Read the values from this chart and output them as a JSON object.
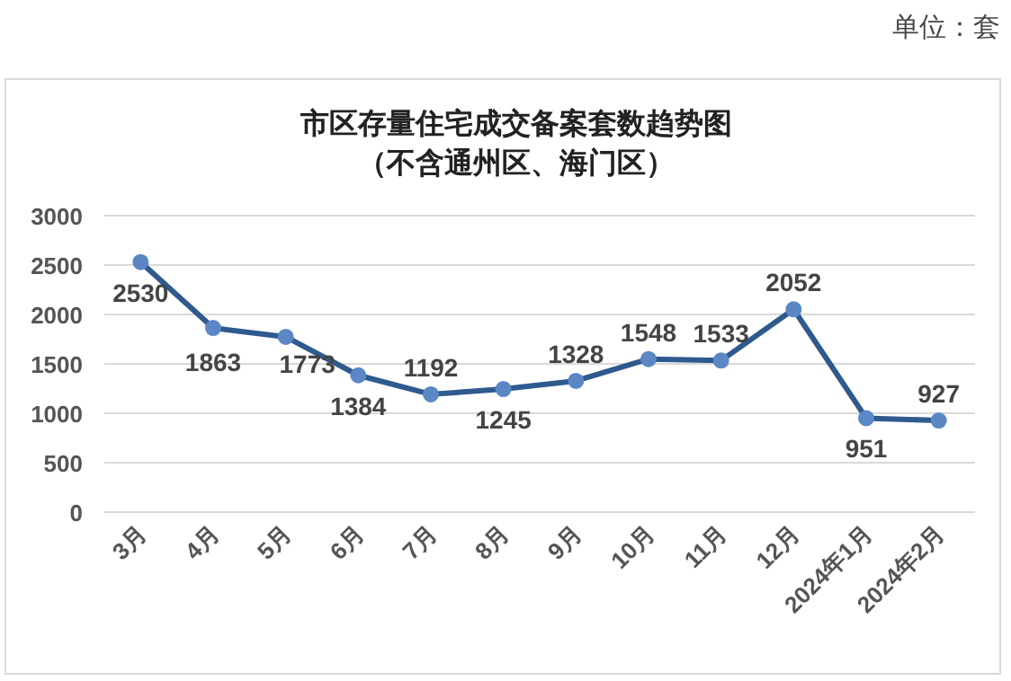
{
  "chart_data": {
    "type": "line",
    "title": "市区存量住宅成交备案套数趋势图",
    "subtitle": "（不含通州区、海门区）",
    "annotations": [
      "单位：套"
    ],
    "categories": [
      "3月",
      "4月",
      "5月",
      "6月",
      "7月",
      "8月",
      "9月",
      "10月",
      "11月",
      "12月",
      "2024年1月",
      "2024年2月"
    ],
    "series": [
      {
        "color": "#2e5a8e",
        "values": [
          2530,
          1863,
          1773,
          1384,
          1192,
          1245,
          1328,
          1548,
          1533,
          2052,
          951,
          927
        ]
      }
    ],
    "ylim": [
      0,
      3000
    ],
    "yticks": [
      0,
      500,
      1000,
      1500,
      2000,
      2500,
      3000
    ],
    "grid": "y",
    "marker": "circle",
    "line_style": "solid",
    "data_labels": true
  }
}
